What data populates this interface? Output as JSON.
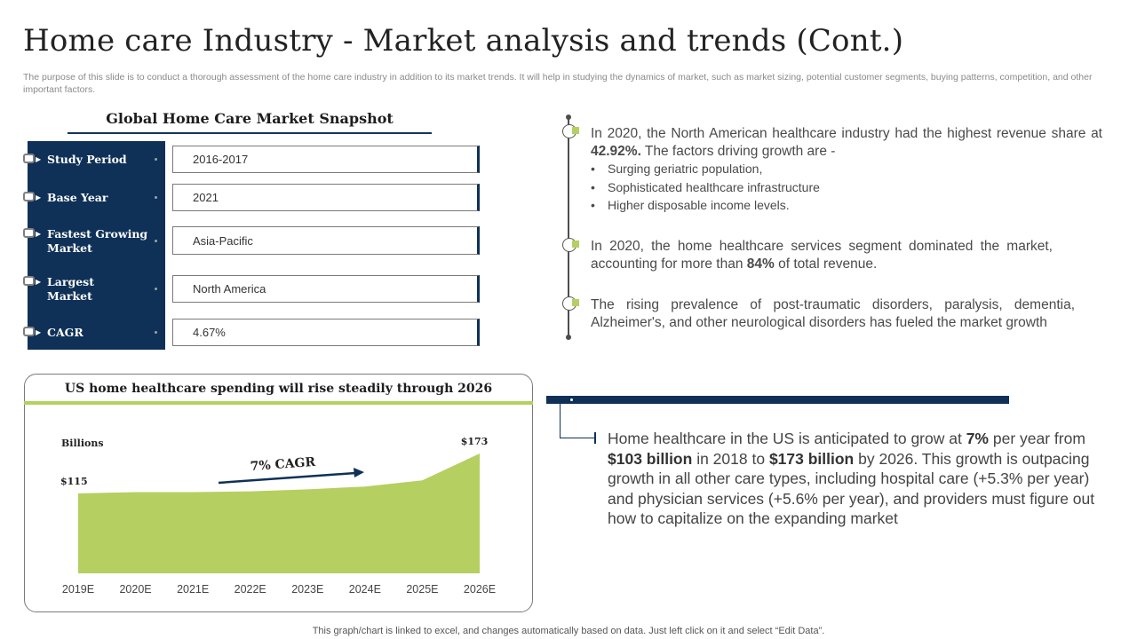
{
  "header": {
    "title": "Home care Industry - Market analysis and trends (Cont.)",
    "subtitle": "The purpose of this slide is to conduct a thorough assessment of the home care industry in addition to its market trends. It will help in studying the dynamics of market, such as market sizing, potential customer segments, buying patterns, competition, and other important factors."
  },
  "snapshot": {
    "title": "Global Home Care Market Snapshot",
    "rows": [
      {
        "label": "Study Period",
        "value": "2016-2017"
      },
      {
        "label": "Base Year",
        "value": "2021"
      },
      {
        "label": "Fastest Growing Market",
        "value": "Asia-Pacific"
      },
      {
        "label": "Largest Market",
        "value": "North America"
      },
      {
        "label": "CAGR",
        "value": "4.67%"
      }
    ]
  },
  "chart": {
    "title": "US home healthcare spending will rise steadily through 2026",
    "annotation": "7% CAGR",
    "start_label": "$115",
    "end_label": "$173"
  },
  "chart_data": {
    "type": "area",
    "title": "US home healthcare spending will rise steadily through 2026",
    "ylabel": "Billions",
    "xlabel": "",
    "categories": [
      "2019E",
      "2020E",
      "2021E",
      "2022E",
      "2023E",
      "2024E",
      "2025E",
      "2026E"
    ],
    "values": [
      115,
      117,
      117,
      118,
      121,
      125,
      134,
      173
    ],
    "ylim": [
      0,
      180
    ],
    "color": "#b5cf61",
    "annotations": [
      "$115",
      "$173",
      "7% CAGR"
    ]
  },
  "timeline": {
    "item1_intro": "In 2020, the North American healthcare industry had the highest revenue share at",
    "item1_value": "42.92%.",
    "item1_tail": "The factors driving growth are -",
    "item1_bullets": [
      "Surging geriatric population,",
      "Sophisticated healthcare infrastructure",
      "Higher disposable income levels."
    ],
    "item2_intro": "In 2020, the home healthcare services segment dominated the market, accounting for more than",
    "item2_value": "84%",
    "item2_tail": "of total revenue.",
    "item3": "The rising prevalence of post-traumatic disorders, paralysis, dementia, Alzheimer's, and other neurological disorders has fueled the market growth"
  },
  "growth": {
    "p1": "Home healthcare in the US is anticipated to grow at",
    "v1": "7%",
    "p2": "per year from",
    "v2": "$103 billion",
    "p3": "in 2018 to",
    "v3": "$173 billion",
    "p4": "by 2026. This growth is outpacing growth in all other care types, including hospital care (+5.3% per year) and physician services (+5.6% per year), and providers must figure out how to capitalize on the expanding market"
  },
  "footer": "This graph/chart is linked to excel, and changes automatically based on data. Just left click on it and select “Edit Data”.",
  "colors": {
    "navy": "#0f3157",
    "green": "#b5cf61",
    "text": "#404040"
  }
}
